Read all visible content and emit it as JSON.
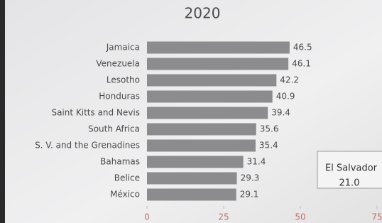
{
  "chart_data": {
    "type": "bar",
    "orientation": "horizontal",
    "title": "2020",
    "categories": [
      "Jamaica",
      "Venezuela",
      "Lesotho",
      "Honduras",
      "Saint Kitts and Nevis",
      "South Africa",
      "S. V. and the Grenadines",
      "Bahamas",
      "Belice",
      "México"
    ],
    "values": [
      46.5,
      46.1,
      42.2,
      40.9,
      39.4,
      35.6,
      35.4,
      31.4,
      29.3,
      29.1
    ],
    "color": "#8c8c8e",
    "xlim": [
      0,
      75
    ],
    "xticks": [
      0,
      25,
      50,
      75
    ],
    "annotation": {
      "label": "El Salvador",
      "value": "21.0"
    }
  }
}
